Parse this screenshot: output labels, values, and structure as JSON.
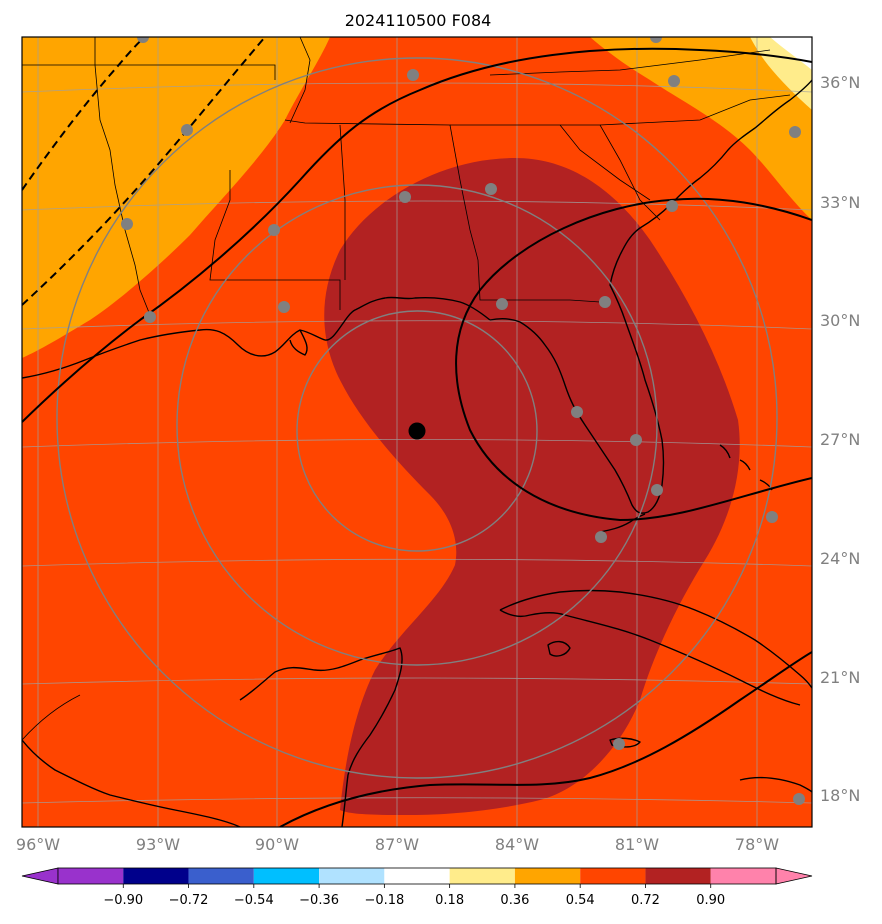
{
  "title": "2024110500 F084",
  "colors": {
    "ocean_fill": "#ff4500",
    "orange_fill": "#ffa500",
    "dark_red_fill": "#b22222",
    "yellow_fill": "#ffec8b",
    "coast": "#000000",
    "grid": "#a0a0a0",
    "ring": "#808080",
    "station": "#808080",
    "center": "#000000"
  },
  "map": {
    "lon_labels": [
      "96°W",
      "93°W",
      "90°W",
      "87°W",
      "84°W",
      "81°W",
      "78°W"
    ],
    "lat_labels": [
      "36°N",
      "33°N",
      "30°N",
      "27°N",
      "24°N",
      "21°N",
      "18°N"
    ],
    "center_marker": {
      "lon": -86.5,
      "lat": 27.2
    },
    "rings_deg": [
      3,
      6,
      9
    ]
  },
  "colorbar": {
    "ticks": [
      "−0.90",
      "−0.72",
      "−0.54",
      "−0.36",
      "−0.18",
      "0.18",
      "0.36",
      "0.54",
      "0.72",
      "0.90"
    ],
    "colors": [
      "#9932cc",
      "#00008b",
      "#3a5fcd",
      "#00bfff",
      "#b0e2ff",
      "#ffffff",
      "#ffec8b",
      "#ffa500",
      "#ff4500",
      "#b22222"
    ],
    "extend_low_color": "#9932cc",
    "extend_high_color": "#ff82ab"
  }
}
